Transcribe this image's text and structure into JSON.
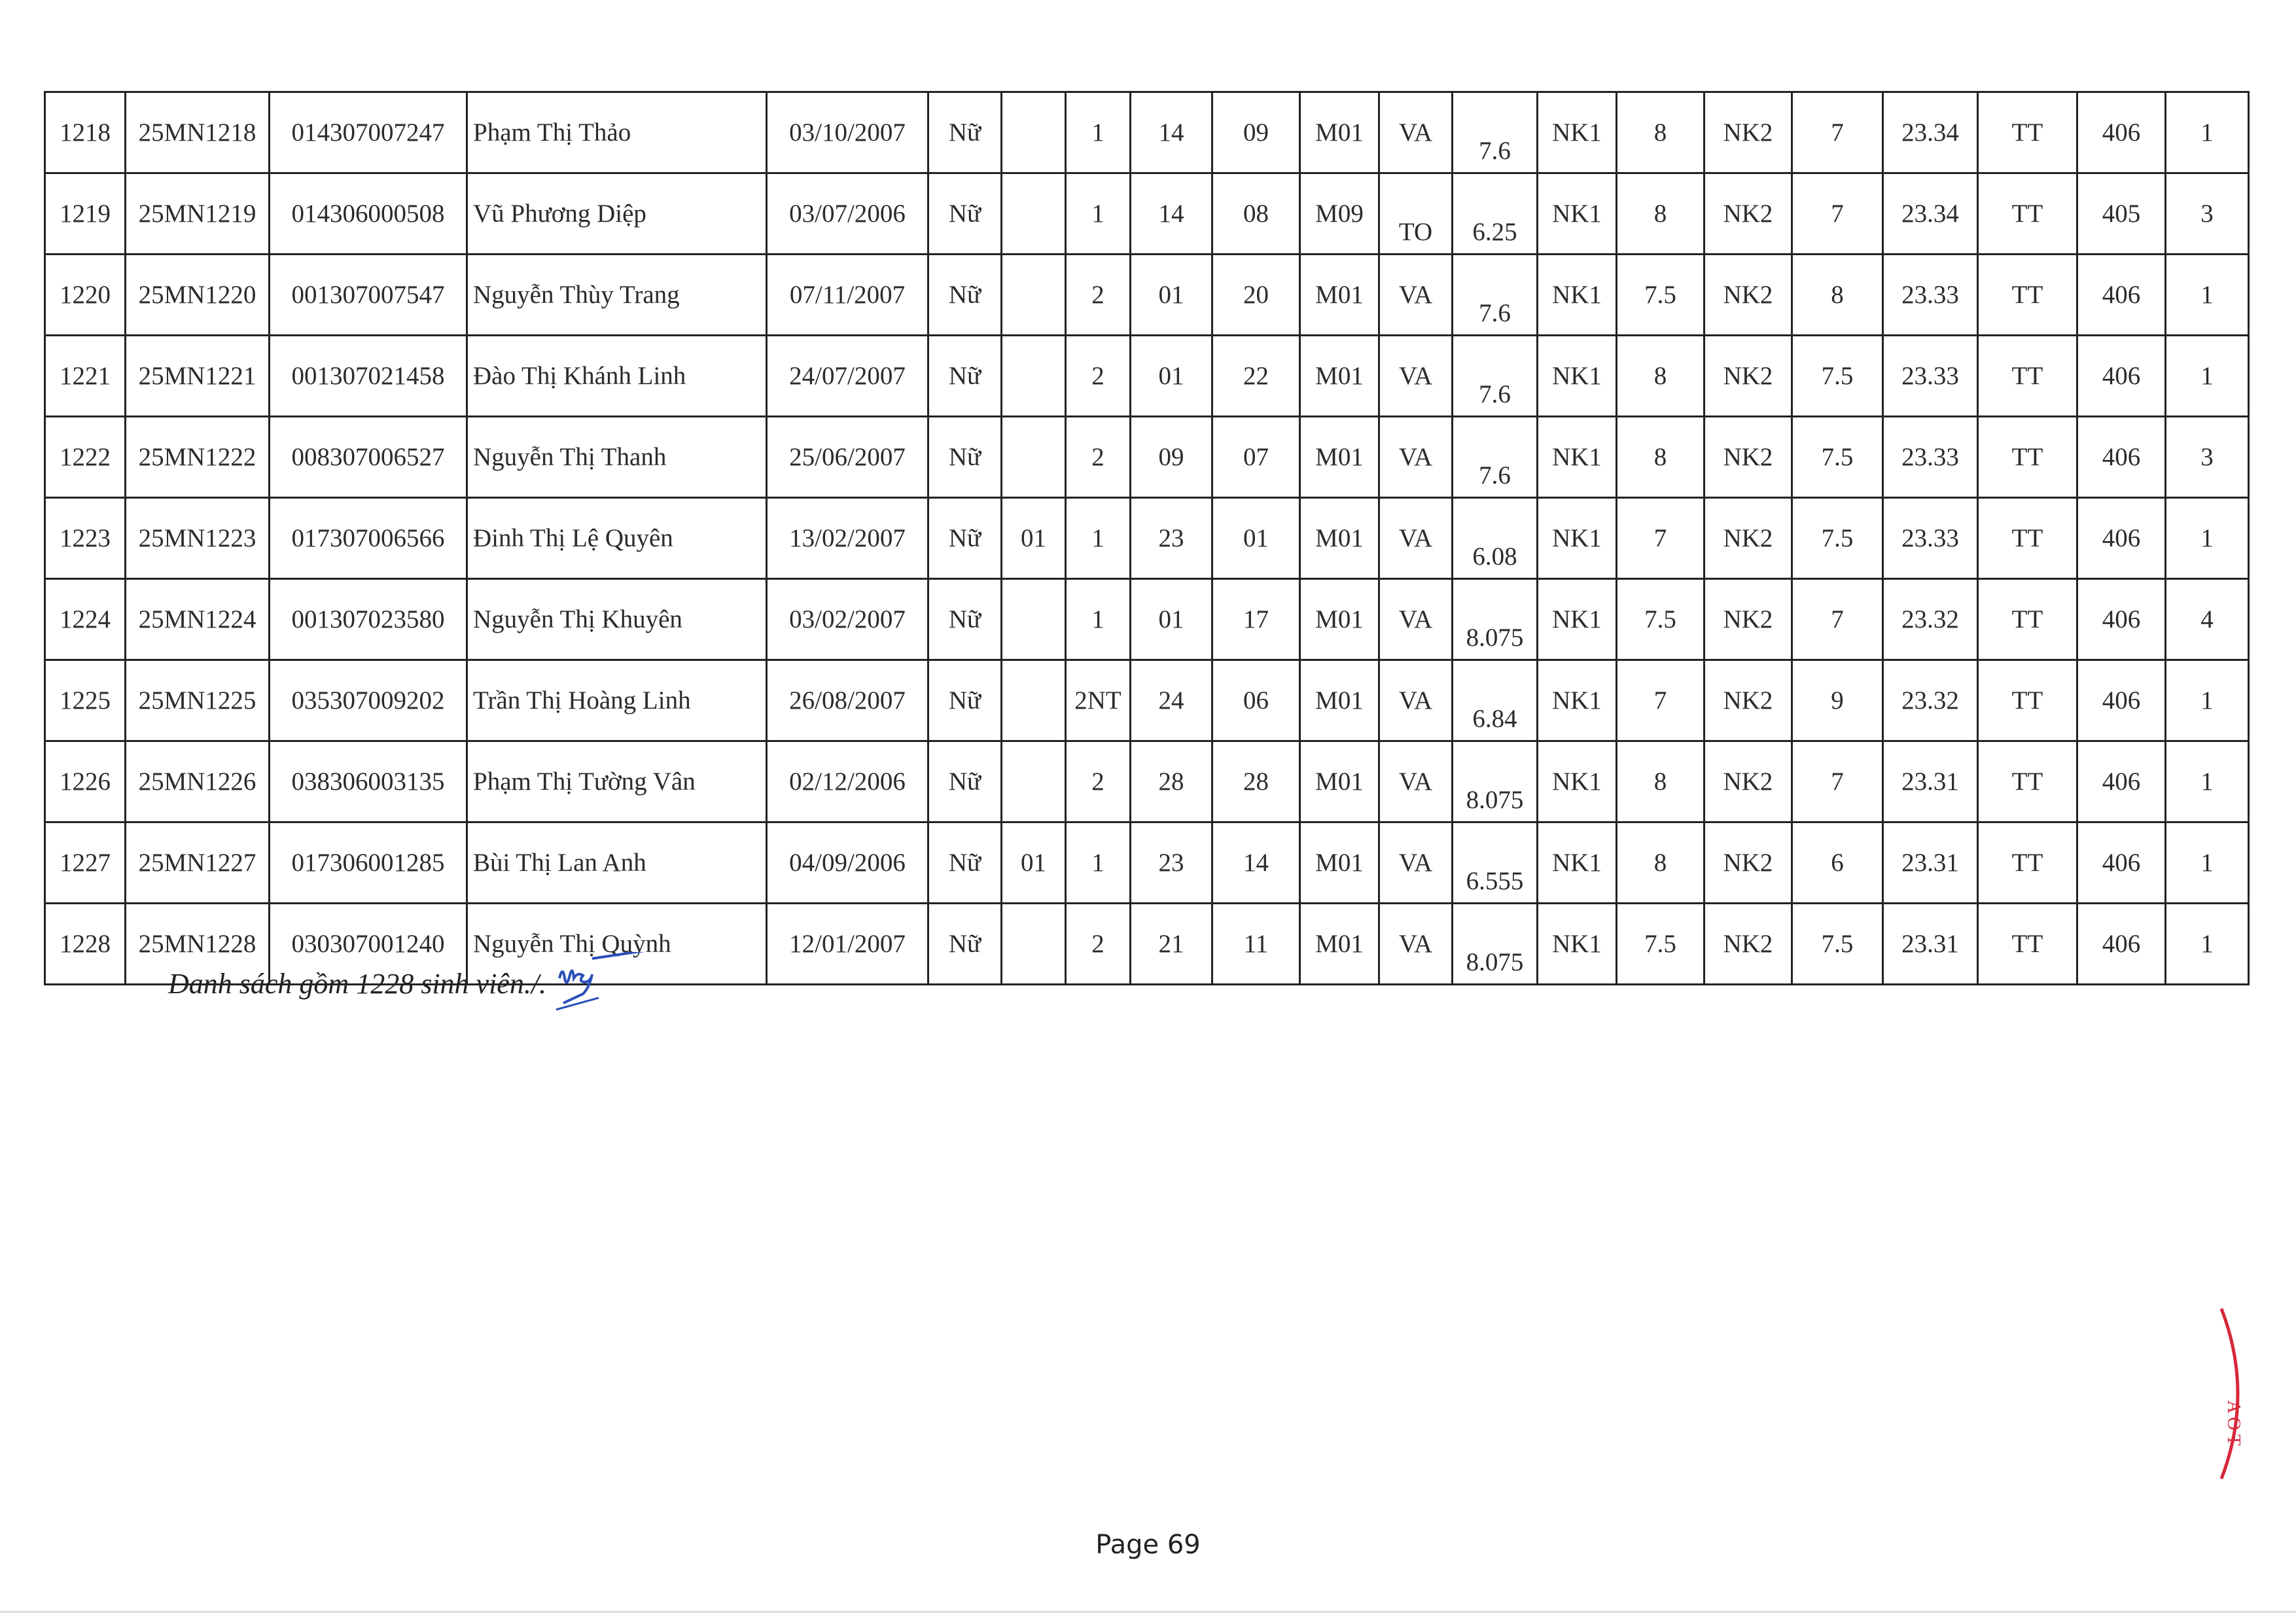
{
  "table": {
    "rows": [
      [
        "1218",
        "25MN1218",
        "014307007247",
        "Phạm Thị Thảo",
        "03/10/2007",
        "Nữ",
        "",
        "1",
        "14",
        "09",
        "M01",
        "VA",
        "7.6",
        "NK1",
        "8",
        "NK2",
        "7",
        "23.34",
        "TT",
        "406",
        "1"
      ],
      [
        "1219",
        "25MN1219",
        "014306000508",
        "Vũ Phương Diệp",
        "03/07/2006",
        "Nữ",
        "",
        "1",
        "14",
        "08",
        "M09",
        "TO",
        "6.25",
        "NK1",
        "8",
        "NK2",
        "7",
        "23.34",
        "TT",
        "405",
        "3"
      ],
      [
        "1220",
        "25MN1220",
        "001307007547",
        "Nguyễn Thùy Trang",
        "07/11/2007",
        "Nữ",
        "",
        "2",
        "01",
        "20",
        "M01",
        "VA",
        "7.6",
        "NK1",
        "7.5",
        "NK2",
        "8",
        "23.33",
        "TT",
        "406",
        "1"
      ],
      [
        "1221",
        "25MN1221",
        "001307021458",
        "Đào Thị Khánh Linh",
        "24/07/2007",
        "Nữ",
        "",
        "2",
        "01",
        "22",
        "M01",
        "VA",
        "7.6",
        "NK1",
        "8",
        "NK2",
        "7.5",
        "23.33",
        "TT",
        "406",
        "1"
      ],
      [
        "1222",
        "25MN1222",
        "008307006527",
        "Nguyễn Thị Thanh",
        "25/06/2007",
        "Nữ",
        "",
        "2",
        "09",
        "07",
        "M01",
        "VA",
        "7.6",
        "NK1",
        "8",
        "NK2",
        "7.5",
        "23.33",
        "TT",
        "406",
        "3"
      ],
      [
        "1223",
        "25MN1223",
        "017307006566",
        "Đinh Thị Lệ Quyên",
        "13/02/2007",
        "Nữ",
        "01",
        "1",
        "23",
        "01",
        "M01",
        "VA",
        "6.08",
        "NK1",
        "7",
        "NK2",
        "7.5",
        "23.33",
        "TT",
        "406",
        "1"
      ],
      [
        "1224",
        "25MN1224",
        "001307023580",
        "Nguyễn Thị Khuyên",
        "03/02/2007",
        "Nữ",
        "",
        "1",
        "01",
        "17",
        "M01",
        "VA",
        "8.075",
        "NK1",
        "7.5",
        "NK2",
        "7",
        "23.32",
        "TT",
        "406",
        "4"
      ],
      [
        "1225",
        "25MN1225",
        "035307009202",
        "Trần Thị Hoàng Linh",
        "26/08/2007",
        "Nữ",
        "",
        "2NT",
        "24",
        "06",
        "M01",
        "VA",
        "6.84",
        "NK1",
        "7",
        "NK2",
        "9",
        "23.32",
        "TT",
        "406",
        "1"
      ],
      [
        "1226",
        "25MN1226",
        "038306003135",
        "Phạm Thị Tường Vân",
        "02/12/2006",
        "Nữ",
        "",
        "2",
        "28",
        "28",
        "M01",
        "VA",
        "8.075",
        "NK1",
        "8",
        "NK2",
        "7",
        "23.31",
        "TT",
        "406",
        "1"
      ],
      [
        "1227",
        "25MN1227",
        "017306001285",
        "Bùi Thị Lan Anh",
        "04/09/2006",
        "Nữ",
        "01",
        "1",
        "23",
        "14",
        "M01",
        "VA",
        "6.555",
        "NK1",
        "8",
        "NK2",
        "6",
        "23.31",
        "TT",
        "406",
        "1"
      ],
      [
        "1228",
        "25MN1228",
        "030307001240",
        "Nguyễn Thị Quỳnh",
        "12/01/2007",
        "Nữ",
        "",
        "2",
        "21",
        "11",
        "M01",
        "VA",
        "8.075",
        "NK1",
        "7.5",
        "NK2",
        "7.5",
        "23.31",
        "TT",
        "406",
        "1"
      ]
    ]
  },
  "footer_note": "Danh sách gồm 1228 sinh viên./.",
  "page_label": "Page 69",
  "colors": {
    "signature": "#2a4fb8",
    "stamp": "#d8283a"
  }
}
